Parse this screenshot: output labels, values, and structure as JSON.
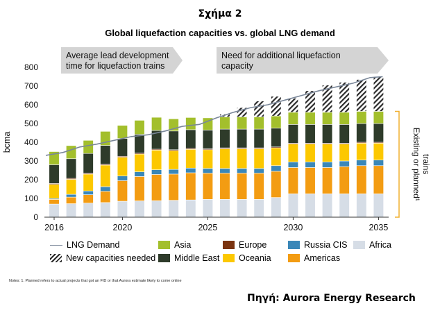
{
  "figure_label": "Σχήμα 2",
  "source": "Πηγή: Aurora Energy Research",
  "notes": "Notes: 1. Planned refers to actual projects that got an FID or that Aurora estimate likely to come online",
  "colors": {
    "Africa": "#d6dde6",
    "Americas": "#f39c12",
    "Oceania": "#fcc800",
    "Russia CIS": "#3a87b8",
    "Europe": "#7b3410",
    "Middle East": "#2e3b2a",
    "Asia": "#a3bf2c",
    "New capacities needed": "#2b2b2b",
    "LNG Demand": "#7a8799",
    "bracket": "#f0b030",
    "banner": "#d4d4d4"
  },
  "chart_data": {
    "type": "bar",
    "stacked": true,
    "title": "Global liquefaction capacities vs. global LNG demand",
    "ylabel": "bcma",
    "ylim": [
      0,
      800
    ],
    "yticks": [
      0,
      100,
      200,
      300,
      400,
      500,
      600,
      700,
      800
    ],
    "xtick_labels": [
      "2016",
      "2020",
      "2025",
      "2030",
      "2035"
    ],
    "categories": [
      "2016",
      "2017",
      "2018",
      "2019",
      "2020",
      "2021",
      "2022",
      "2023",
      "2024",
      "2025",
      "2026",
      "2027",
      "2028",
      "2029",
      "2030",
      "2031",
      "2032",
      "2033",
      "2034",
      "2035"
    ],
    "series": [
      {
        "name": "Africa",
        "values": [
          70,
          72,
          75,
          78,
          85,
          87,
          88,
          90,
          92,
          95,
          95,
          95,
          95,
          105,
          125,
          125,
          125,
          125,
          125,
          125
        ]
      },
      {
        "name": "Americas",
        "values": [
          25,
          35,
          45,
          60,
          110,
          130,
          140,
          140,
          145,
          140,
          140,
          140,
          140,
          140,
          140,
          140,
          140,
          145,
          150,
          150
        ]
      },
      {
        "name": "Russia CIS",
        "values": [
          5,
          15,
          20,
          25,
          25,
          25,
          25,
          25,
          25,
          25,
          25,
          25,
          25,
          30,
          30,
          30,
          30,
          30,
          30,
          30
        ]
      },
      {
        "name": "Oceania",
        "values": [
          75,
          80,
          90,
          115,
          100,
          95,
          105,
          100,
          100,
          100,
          105,
          105,
          105,
          95,
          95,
          95,
          95,
          90,
          90,
          90
        ]
      },
      {
        "name": "Europe",
        "values": [
          5,
          5,
          5,
          5,
          5,
          5,
          5,
          5,
          5,
          5,
          5,
          5,
          5,
          5,
          5,
          5,
          5,
          5,
          5,
          5
        ]
      },
      {
        "name": "Middle East",
        "values": [
          100,
          105,
          105,
          100,
          95,
          100,
          100,
          100,
          100,
          100,
          100,
          100,
          100,
          100,
          100,
          100,
          100,
          100,
          100,
          100
        ]
      },
      {
        "name": "Asia",
        "values": [
          70,
          70,
          70,
          75,
          70,
          75,
          70,
          65,
          65,
          65,
          65,
          65,
          65,
          65,
          65,
          65,
          65,
          65,
          65,
          65
        ]
      },
      {
        "name": "New capacities needed",
        "values": [
          0,
          0,
          0,
          0,
          0,
          0,
          0,
          0,
          0,
          0,
          15,
          50,
          85,
          105,
          75,
          115,
          145,
          160,
          170,
          185
        ]
      }
    ],
    "line": {
      "name": "LNG Demand",
      "values": [
        330,
        345,
        375,
        390,
        410,
        430,
        440,
        460,
        485,
        495,
        530,
        560,
        585,
        600,
        625,
        650,
        675,
        695,
        715,
        745
      ]
    },
    "annotations": [
      {
        "text": "Average lead development time for liquefaction trains",
        "lines": [
          "Average lead development",
          "time for liquefaction trains"
        ]
      },
      {
        "text": "Need for additional liquefaction capacity",
        "lines": [
          "Need for additional liquefaction",
          "capacity"
        ]
      }
    ],
    "bracket_label": "Existing or planned¹ trains",
    "bracket_lines": [
      "Existing or planned¹",
      "trains"
    ],
    "legend": [
      [
        "LNG Demand",
        "Asia",
        "Europe",
        "Russia CIS",
        "Africa"
      ],
      [
        "New capacities needed",
        "Middle East",
        "Oceania",
        "Americas"
      ]
    ],
    "grid": false,
    "legend_position": "bottom"
  }
}
